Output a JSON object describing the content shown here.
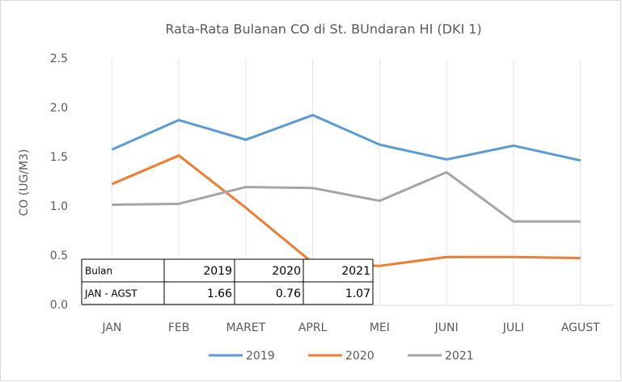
{
  "chart_data": {
    "type": "line",
    "title": "Rata-Rata  Bulanan  CO di St. BUndaran  HI (DKI 1)",
    "y_label": "CO (UG/M3)",
    "categories": [
      "JAN",
      "FEB",
      "MARET",
      "APRL",
      "MEI",
      "JUNI",
      "JULI",
      "AGUST"
    ],
    "series": [
      {
        "name": "2019",
        "color": "#5b9bd5",
        "values": [
          1.58,
          1.88,
          1.68,
          1.93,
          1.63,
          1.48,
          1.62,
          1.47
        ]
      },
      {
        "name": "2020",
        "color": "#ed7d31",
        "values": [
          1.23,
          1.52,
          0.99,
          0.43,
          0.4,
          0.49,
          0.49,
          0.48
        ]
      },
      {
        "name": "2021",
        "color": "#a5a5a5",
        "values": [
          1.02,
          1.03,
          1.2,
          1.19,
          1.06,
          1.35,
          0.85,
          0.85
        ]
      }
    ],
    "ylim": [
      0,
      2.5
    ],
    "yticks": [
      {
        "value": 0,
        "label": "0.0"
      },
      {
        "value": 0.5,
        "label": "0.5"
      },
      {
        "value": 1,
        "label": "1.0"
      },
      {
        "value": 1.5,
        "label": "1.5"
      },
      {
        "value": 2,
        "label": "2.0"
      },
      {
        "value": 2.5,
        "label": "2.5"
      }
    ],
    "grid": true,
    "legend": "bottom",
    "table": {
      "header": [
        "Bulan",
        "2019",
        "2020",
        "2021"
      ],
      "rows": [
        [
          "JAN - AGST",
          "1.66",
          "0.76",
          "1.07"
        ]
      ]
    }
  }
}
